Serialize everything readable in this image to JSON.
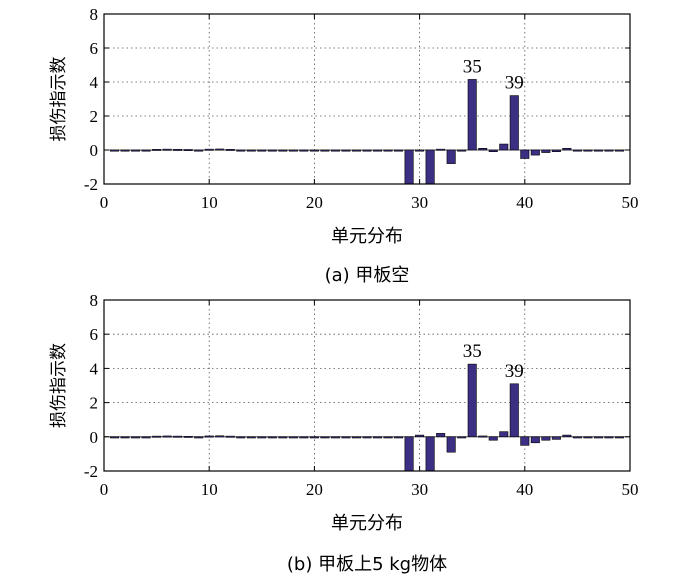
{
  "chart_data": [
    {
      "type": "bar",
      "caption": "(a) 甲板空",
      "xlabel": "单元分布",
      "ylabel": "损伤指示数",
      "xlim": [
        0,
        50
      ],
      "ylim": [
        -2,
        8
      ],
      "xticks": [
        0,
        10,
        20,
        30,
        40,
        50
      ],
      "yticks": [
        -2,
        0,
        2,
        4,
        6,
        8
      ],
      "grid": true,
      "annotations": [
        {
          "text": "35",
          "x": 35,
          "y": 4.15
        },
        {
          "text": "39",
          "x": 39,
          "y": 3.2
        }
      ],
      "x": [
        1,
        2,
        3,
        4,
        5,
        6,
        7,
        8,
        9,
        10,
        11,
        12,
        13,
        14,
        15,
        16,
        17,
        18,
        19,
        20,
        21,
        22,
        23,
        24,
        25,
        26,
        27,
        28,
        29,
        30,
        31,
        32,
        33,
        34,
        35,
        36,
        37,
        38,
        39,
        40,
        41,
        42,
        43,
        44,
        45,
        46,
        47,
        48,
        49
      ],
      "values": [
        -0.05,
        -0.06,
        -0.06,
        -0.05,
        0.04,
        0.05,
        0.04,
        0.03,
        -0.03,
        0.05,
        0.06,
        0.04,
        -0.02,
        -0.03,
        -0.02,
        -0.02,
        -0.02,
        -0.02,
        -0.02,
        -0.02,
        -0.02,
        -0.02,
        -0.02,
        -0.02,
        -0.02,
        -0.02,
        -0.02,
        -0.02,
        -2.0,
        -0.04,
        -2.0,
        0.05,
        -0.8,
        -0.05,
        4.15,
        0.1,
        -0.1,
        0.35,
        3.2,
        -0.5,
        -0.3,
        -0.15,
        -0.1,
        0.1,
        -0.03,
        -0.03,
        -0.03,
        -0.03,
        -0.03
      ]
    },
    {
      "type": "bar",
      "caption": "(b) 甲板上5 kg物体",
      "xlabel": "单元分布",
      "ylabel": "损伤指示数",
      "xlim": [
        0,
        50
      ],
      "ylim": [
        -2,
        8
      ],
      "xticks": [
        0,
        10,
        20,
        30,
        40,
        50
      ],
      "yticks": [
        -2,
        0,
        2,
        4,
        6,
        8
      ],
      "grid": true,
      "annotations": [
        {
          "text": "35",
          "x": 35,
          "y": 4.25
        },
        {
          "text": "39",
          "x": 39,
          "y": 3.1
        }
      ],
      "x": [
        1,
        2,
        3,
        4,
        5,
        6,
        7,
        8,
        9,
        10,
        11,
        12,
        13,
        14,
        15,
        16,
        17,
        18,
        19,
        20,
        21,
        22,
        23,
        24,
        25,
        26,
        27,
        28,
        29,
        30,
        31,
        32,
        33,
        34,
        35,
        36,
        37,
        38,
        39,
        40,
        41,
        42,
        43,
        44,
        45,
        46,
        47,
        48,
        49
      ],
      "values": [
        -0.05,
        -0.06,
        -0.06,
        -0.05,
        0.04,
        0.05,
        0.04,
        0.03,
        -0.03,
        0.05,
        0.06,
        0.04,
        -0.02,
        -0.03,
        -0.02,
        -0.02,
        -0.02,
        -0.02,
        -0.02,
        -0.02,
        -0.02,
        -0.02,
        -0.02,
        -0.02,
        -0.02,
        -0.02,
        -0.02,
        -0.02,
        -2.0,
        0.1,
        -2.0,
        0.2,
        -0.9,
        -0.05,
        4.25,
        0.05,
        -0.2,
        0.3,
        3.1,
        -0.5,
        -0.35,
        -0.2,
        -0.15,
        0.1,
        -0.03,
        -0.03,
        -0.03,
        -0.03,
        -0.03
      ]
    }
  ]
}
